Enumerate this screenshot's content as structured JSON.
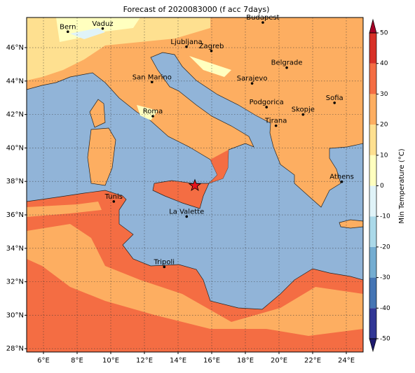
{
  "title": "Forecast of 2020083000 (f acc 7days)",
  "map": {
    "xlim": [
      5,
      25
    ],
    "ylim": [
      27.8,
      47.8
    ],
    "xticks": [
      {
        "value": 6,
        "label": "6°E"
      },
      {
        "value": 8,
        "label": "8°E"
      },
      {
        "value": 10,
        "label": "10°E"
      },
      {
        "value": 12,
        "label": "12°E"
      },
      {
        "value": 14,
        "label": "14°E"
      },
      {
        "value": 16,
        "label": "16°E"
      },
      {
        "value": 18,
        "label": "18°E"
      },
      {
        "value": 20,
        "label": "20°E"
      },
      {
        "value": 22,
        "label": "22°E"
      },
      {
        "value": 24,
        "label": "24°E"
      }
    ],
    "yticks": [
      {
        "value": 28,
        "label": "28°N"
      },
      {
        "value": 30,
        "label": "30°N"
      },
      {
        "value": 32,
        "label": "32°N"
      },
      {
        "value": 34,
        "label": "34°N"
      },
      {
        "value": 36,
        "label": "36°N"
      },
      {
        "value": 38,
        "label": "38°N"
      },
      {
        "value": 40,
        "label": "40°N"
      },
      {
        "value": 42,
        "label": "42°N"
      },
      {
        "value": 44,
        "label": "44°N"
      },
      {
        "value": 46,
        "label": "46°N"
      }
    ],
    "grid": true,
    "cities": [
      {
        "name": "Bern",
        "lon": 7.45,
        "lat": 46.95
      },
      {
        "name": "Vaduz",
        "lon": 9.52,
        "lat": 47.14
      },
      {
        "name": "Budapest",
        "lon": 19.04,
        "lat": 47.5
      },
      {
        "name": "Ljubljana",
        "lon": 14.5,
        "lat": 46.05
      },
      {
        "name": "Zagreb",
        "lon": 15.98,
        "lat": 45.8
      },
      {
        "name": "Belgrade",
        "lon": 20.46,
        "lat": 44.8
      },
      {
        "name": "San Marino",
        "lon": 12.45,
        "lat": 43.94
      },
      {
        "name": "Sarajevo",
        "lon": 18.4,
        "lat": 43.86
      },
      {
        "name": "Sofia",
        "lon": 23.3,
        "lat": 42.7
      },
      {
        "name": "Podgorica",
        "lon": 19.26,
        "lat": 42.44
      },
      {
        "name": "Skopje",
        "lon": 21.43,
        "lat": 42.0
      },
      {
        "name": "Roma",
        "lon": 12.5,
        "lat": 41.9
      },
      {
        "name": "Tirana",
        "lon": 19.82,
        "lat": 41.33
      },
      {
        "name": "Athens",
        "lon": 23.73,
        "lat": 37.98
      },
      {
        "name": "Tunis",
        "lon": 10.18,
        "lat": 36.8
      },
      {
        "name": "La Valette",
        "lon": 14.51,
        "lat": 35.9
      },
      {
        "name": "Tripoli",
        "lon": 13.18,
        "lat": 32.89
      }
    ],
    "event": {
      "lon": 15.0,
      "lat": 37.75,
      "color": "#e8141c"
    }
  },
  "colorbar": {
    "label": "Min Temperature (°C)",
    "ticks": [
      -50,
      -40,
      -30,
      -20,
      -10,
      0,
      10,
      20,
      30,
      40,
      50
    ],
    "colors": [
      "#313695",
      "#4575b4",
      "#74add1",
      "#abd9e9",
      "#e0f3f8",
      "#ffffbf",
      "#fee090",
      "#fdae61",
      "#f46d43",
      "#d73027"
    ],
    "extend_colors": [
      "#1e1a6e",
      "#a50026"
    ]
  }
}
